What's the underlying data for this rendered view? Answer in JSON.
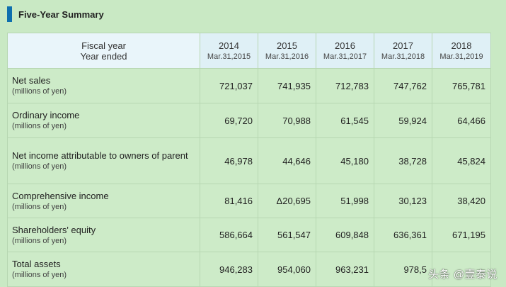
{
  "title": "Five-Year Summary",
  "header": {
    "label_line1": "Fiscal year",
    "label_line2": "Year ended",
    "years": [
      {
        "year": "2014",
        "period": "Mar.31,2015"
      },
      {
        "year": "2015",
        "period": "Mar.31,2016"
      },
      {
        "year": "2016",
        "period": "Mar.31,2017"
      },
      {
        "year": "2017",
        "period": "Mar.31,2018"
      },
      {
        "year": "2018",
        "period": "Mar.31,2019"
      }
    ]
  },
  "rows": [
    {
      "label": "Net sales",
      "unit": "(millions of yen)",
      "values": [
        "721,037",
        "741,935",
        "712,783",
        "747,762",
        "765,781"
      ]
    },
    {
      "label": "Ordinary income",
      "unit": "(millions of yen)",
      "values": [
        "69,720",
        "70,988",
        "61,545",
        "59,924",
        "64,466"
      ]
    },
    {
      "label": "Net income attributable to owners of parent",
      "unit": "(millions of yen)",
      "values": [
        "46,978",
        "44,646",
        "45,180",
        "38,728",
        "45,824"
      ]
    },
    {
      "label": "Comprehensive income",
      "unit": "(millions of yen)",
      "values": [
        "81,416",
        "Δ20,695",
        "51,998",
        "30,123",
        "38,420"
      ]
    },
    {
      "label": "Shareholders' equity",
      "unit": "(millions of yen)",
      "values": [
        "586,664",
        "561,547",
        "609,848",
        "636,361",
        "671,195"
      ]
    },
    {
      "label": "Total assets",
      "unit": "(millions of yen)",
      "values": [
        "946,283",
        "954,060",
        "963,231",
        "978,5",
        ""
      ]
    }
  ],
  "watermark": "头条 @壹泰说",
  "colors": {
    "page_bg": "#c9e9c4",
    "header_bg": "#dff0f6",
    "title_mark": "#0e6fae",
    "border": "#b7d7b2"
  }
}
